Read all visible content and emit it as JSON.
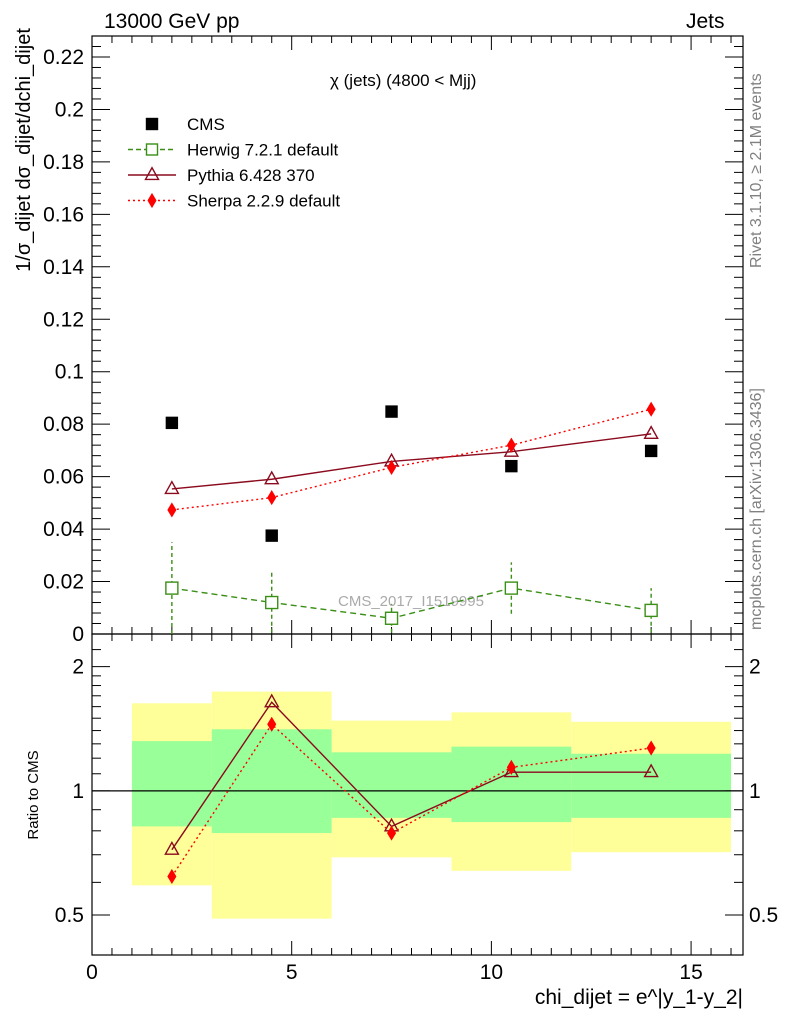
{
  "header": {
    "left": "13000 GeV pp",
    "right": "Jets"
  },
  "side_labels": {
    "rivet": "Rivet 3.1.10, ≥ 2.1M events",
    "mcplots": "mcplots.cern.ch [arXiv:1306.3436]"
  },
  "watermark": "CMS_2017_I1519995",
  "colors": {
    "data": "#000000",
    "herwig": "#3a8f16",
    "pythia": "#8b0a1e",
    "sherpa": "#ff0000",
    "band_outer": "#ffff99",
    "band_inner": "#99ff99"
  },
  "chart_data": [
    {
      "type": "scatter",
      "title": "χ (jets) (4800 < Mjj)",
      "ylabel": "1/σ_dijet dσ_dijet/dchi_dijet",
      "ylim": [
        0,
        0.228
      ],
      "yticks": [
        "0",
        "0.02",
        "0.04",
        "0.06",
        "0.08",
        "0.1",
        "0.12",
        "0.14",
        "0.16",
        "0.18",
        "0.2",
        "0.22"
      ],
      "xlim": [
        0,
        16.3
      ],
      "legend_position": "top-left",
      "x": [
        2,
        4.5,
        7.5,
        10.5,
        14
      ],
      "bins": [
        [
          1,
          3
        ],
        [
          3,
          6
        ],
        [
          6,
          9
        ],
        [
          9,
          12
        ],
        [
          12,
          16
        ]
      ],
      "series": [
        {
          "name": "CMS",
          "values": [
            0.0805,
            0.0375,
            0.0848,
            0.064,
            0.0698
          ]
        },
        {
          "name": "Herwig 7.2.1 default",
          "values": [
            0.0175,
            0.012,
            0.006,
            0.0175,
            0.009
          ],
          "errors": [
            0.0175,
            0.0115,
            0.0055,
            0.0098,
            0.0085
          ]
        },
        {
          "name": "Pythia 6.428 370",
          "values": [
            0.0553,
            0.059,
            0.0658,
            0.0695,
            0.0763
          ]
        },
        {
          "name": "Sherpa 2.2.9 default",
          "values": [
            0.0473,
            0.052,
            0.0635,
            0.072,
            0.0857
          ]
        }
      ]
    },
    {
      "type": "line",
      "ylabel": "Ratio to CMS",
      "xlabel": "chi_dijet = e^|y_1-y_2|",
      "log_y": true,
      "ylim": [
        0.4,
        2.4
      ],
      "yticks": [
        "0.5",
        "1",
        "2"
      ],
      "xticks": [
        "0",
        "5",
        "10",
        "15"
      ],
      "xlim": [
        0,
        16.3
      ],
      "x": [
        2,
        4.5,
        7.5,
        10.5,
        14
      ],
      "bands": {
        "inner": [
          [
            0.82,
            1.32
          ],
          [
            0.79,
            1.41
          ],
          [
            0.86,
            1.24
          ],
          [
            0.84,
            1.28
          ],
          [
            0.86,
            1.23
          ]
        ],
        "outer": [
          [
            0.59,
            1.63
          ],
          [
            0.49,
            1.74
          ],
          [
            0.69,
            1.48
          ],
          [
            0.64,
            1.55
          ],
          [
            0.71,
            1.47
          ]
        ]
      },
      "series": [
        {
          "name": "Pythia 6.428 370",
          "values": [
            0.72,
            1.64,
            0.82,
            1.11,
            1.11
          ]
        },
        {
          "name": "Sherpa 2.2.9 default",
          "values": [
            0.62,
            1.45,
            0.79,
            1.14,
            1.27
          ]
        }
      ]
    }
  ]
}
